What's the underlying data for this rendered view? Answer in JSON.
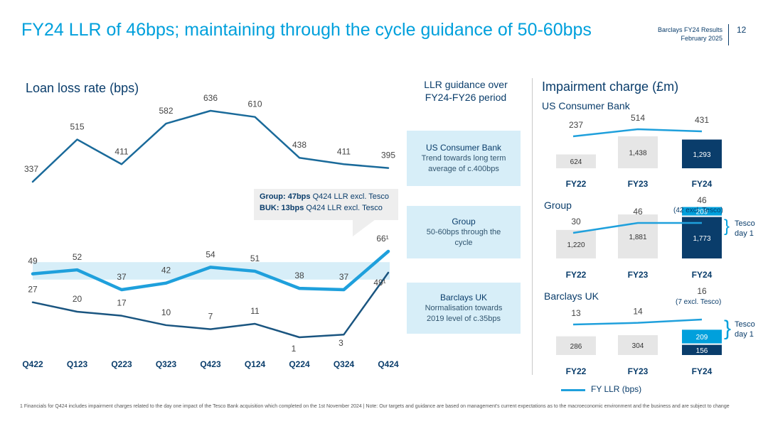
{
  "header": {
    "title": "FY24 LLR of 46bps; maintaining through the cycle guidance of 50-60bps",
    "doc_title": "Barclays FY24 Results",
    "doc_date": "February 2025",
    "page_number": "12"
  },
  "llr_chart": {
    "title": "Loan loss rate (bps)",
    "callout_line1_bold": "Group: 47bps",
    "callout_line1_rest": " Q424 LLR excl. Tesco",
    "callout_line2_bold": "BUK: 13bps",
    "callout_line2_rest": " Q424 LLR excl. Tesco"
  },
  "guidance": {
    "heading": "LLR guidance over FY24-FY26 period",
    "boxes": [
      {
        "name": "US Consumer Bank",
        "text": "Trend towards long term average of c.400bps"
      },
      {
        "name": "Group",
        "text": "50-60bps through the cycle"
      },
      {
        "name": "Barclays UK",
        "text": "Normalisation towards 2019 level of c.35bps"
      }
    ]
  },
  "impairment": {
    "title": "Impairment charge (£m)",
    "legend": "FY LLR (bps)",
    "tesco_label": "Tesco day 1"
  },
  "footnote": "1 Financials for Q424 includes impairment charges related to the day one impact of the Tesco Bank acquisition which completed on the 1st November 2024 | Note: Our targets and guidance are based on management's current expectations as to the macroeconomic environment and the business and are subject to change",
  "colors": {
    "primary": "#00a0dc",
    "dark": "#0a3d6b",
    "line_dark": "#1a6a9a",
    "band": "#d7eef8",
    "bar_grey": "#e6e6e6"
  },
  "chart_data": [
    {
      "type": "line",
      "title": "Loan loss rate (bps)",
      "categories": [
        "Q422",
        "Q123",
        "Q223",
        "Q323",
        "Q423",
        "Q124",
        "Q224",
        "Q324",
        "Q424"
      ],
      "series": [
        {
          "name": "US Consumer Bank",
          "values": [
            337,
            515,
            411,
            582,
            636,
            610,
            438,
            411,
            395
          ],
          "labels": [
            "337",
            "515",
            "411",
            "582",
            "636",
            "610",
            "438",
            "411",
            "395"
          ]
        },
        {
          "name": "Group",
          "values": [
            49,
            52,
            37,
            42,
            54,
            51,
            38,
            37,
            66
          ],
          "labels": [
            "49",
            "52",
            "37",
            "42",
            "54",
            "51",
            "38",
            "37",
            "66¹"
          ]
        },
        {
          "name": "Barclays UK",
          "values": [
            27,
            20,
            17,
            10,
            7,
            11,
            1,
            3,
            49
          ],
          "labels": [
            "27",
            "20",
            "17",
            "10",
            "7",
            "11",
            "1",
            "3",
            "49¹"
          ]
        }
      ],
      "guidance_band": {
        "series": "Group",
        "range": [
          50,
          60
        ]
      }
    },
    {
      "type": "bar",
      "title": "US Consumer Bank",
      "categories": [
        "FY22",
        "FY23",
        "FY24"
      ],
      "values": [
        624,
        1438,
        1293
      ],
      "value_labels": [
        "624",
        "1,438",
        "1,293"
      ],
      "llr_bps": [
        237,
        514,
        431
      ],
      "llr_labels": [
        "237",
        "514",
        "431"
      ]
    },
    {
      "type": "bar",
      "title": "Group",
      "categories": [
        "FY22",
        "FY23",
        "FY24"
      ],
      "values": [
        1220,
        1881,
        1773
      ],
      "value_labels": [
        "1,220",
        "1,881",
        "1,773"
      ],
      "tesco_day1": {
        "FY24": 209
      },
      "tesco_label": "209",
      "llr_bps": [
        30,
        46,
        46
      ],
      "llr_labels": [
        "30",
        "46",
        "46"
      ],
      "llr_note": "(42 excl. Tesco)"
    },
    {
      "type": "bar",
      "title": "Barclays UK",
      "categories": [
        "FY22",
        "FY23",
        "FY24"
      ],
      "values": [
        286,
        304,
        156
      ],
      "value_labels": [
        "286",
        "304",
        "156"
      ],
      "tesco_day1": {
        "FY24": 209
      },
      "tesco_label": "209",
      "llr_bps": [
        13,
        14,
        16
      ],
      "llr_labels": [
        "13",
        "14",
        "16"
      ],
      "llr_note": "(7 excl. Tesco)"
    }
  ]
}
